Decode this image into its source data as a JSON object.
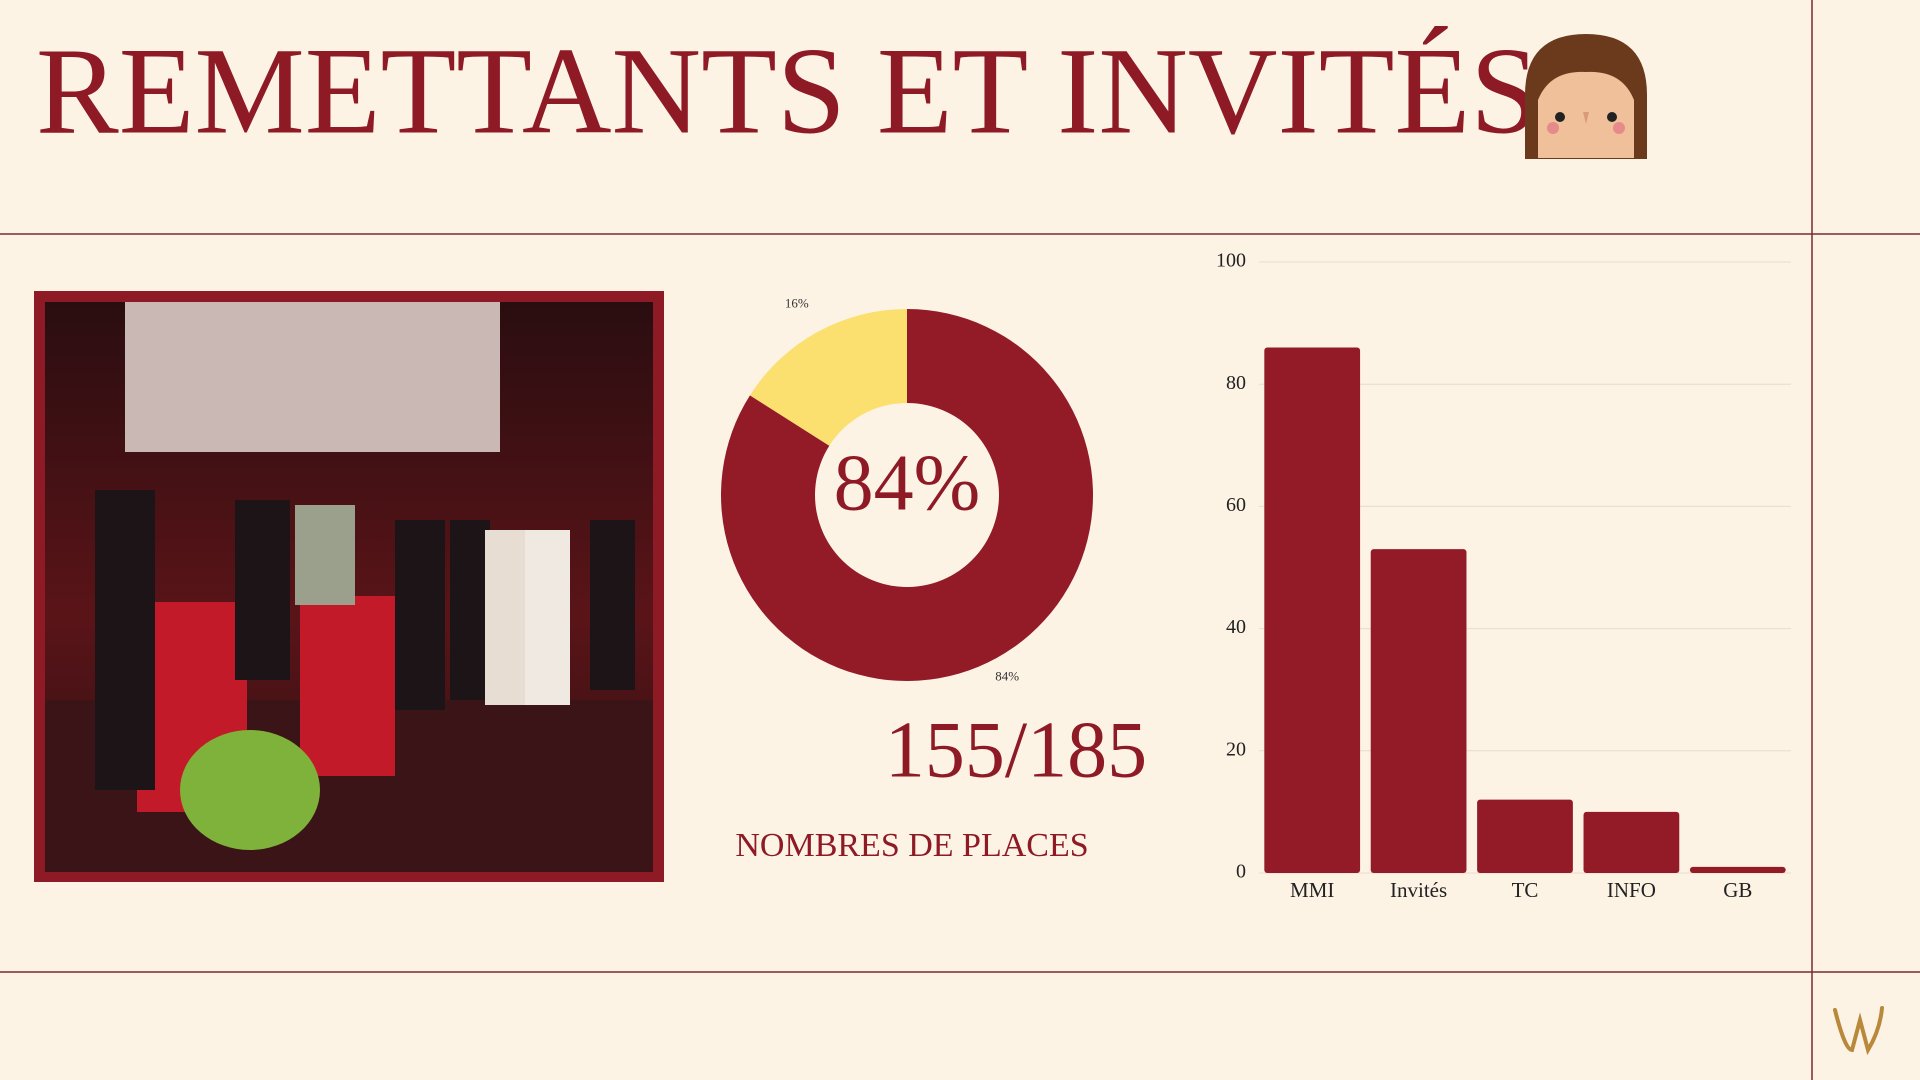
{
  "header": {
    "title": "REMETTANTS ET INVITÉS"
  },
  "stats": {
    "ratio": "155/185",
    "caption": "NOMBRES DE PLACES"
  },
  "chart_data": [
    {
      "type": "pie",
      "values": [
        84,
        16
      ],
      "value_labels": [
        "84%",
        "16%"
      ],
      "colors": [
        "#921b27",
        "#fbdf6f"
      ],
      "center_label": "84%"
    },
    {
      "type": "bar",
      "categories": [
        "MMI",
        "Invités",
        "TC",
        "INFO",
        "GB"
      ],
      "values": [
        86,
        53,
        12,
        10,
        1
      ],
      "color": "#921b27",
      "ylim": [
        0,
        100
      ],
      "yticks": [
        0,
        20,
        40,
        60,
        80,
        100
      ],
      "grid": true
    }
  ]
}
